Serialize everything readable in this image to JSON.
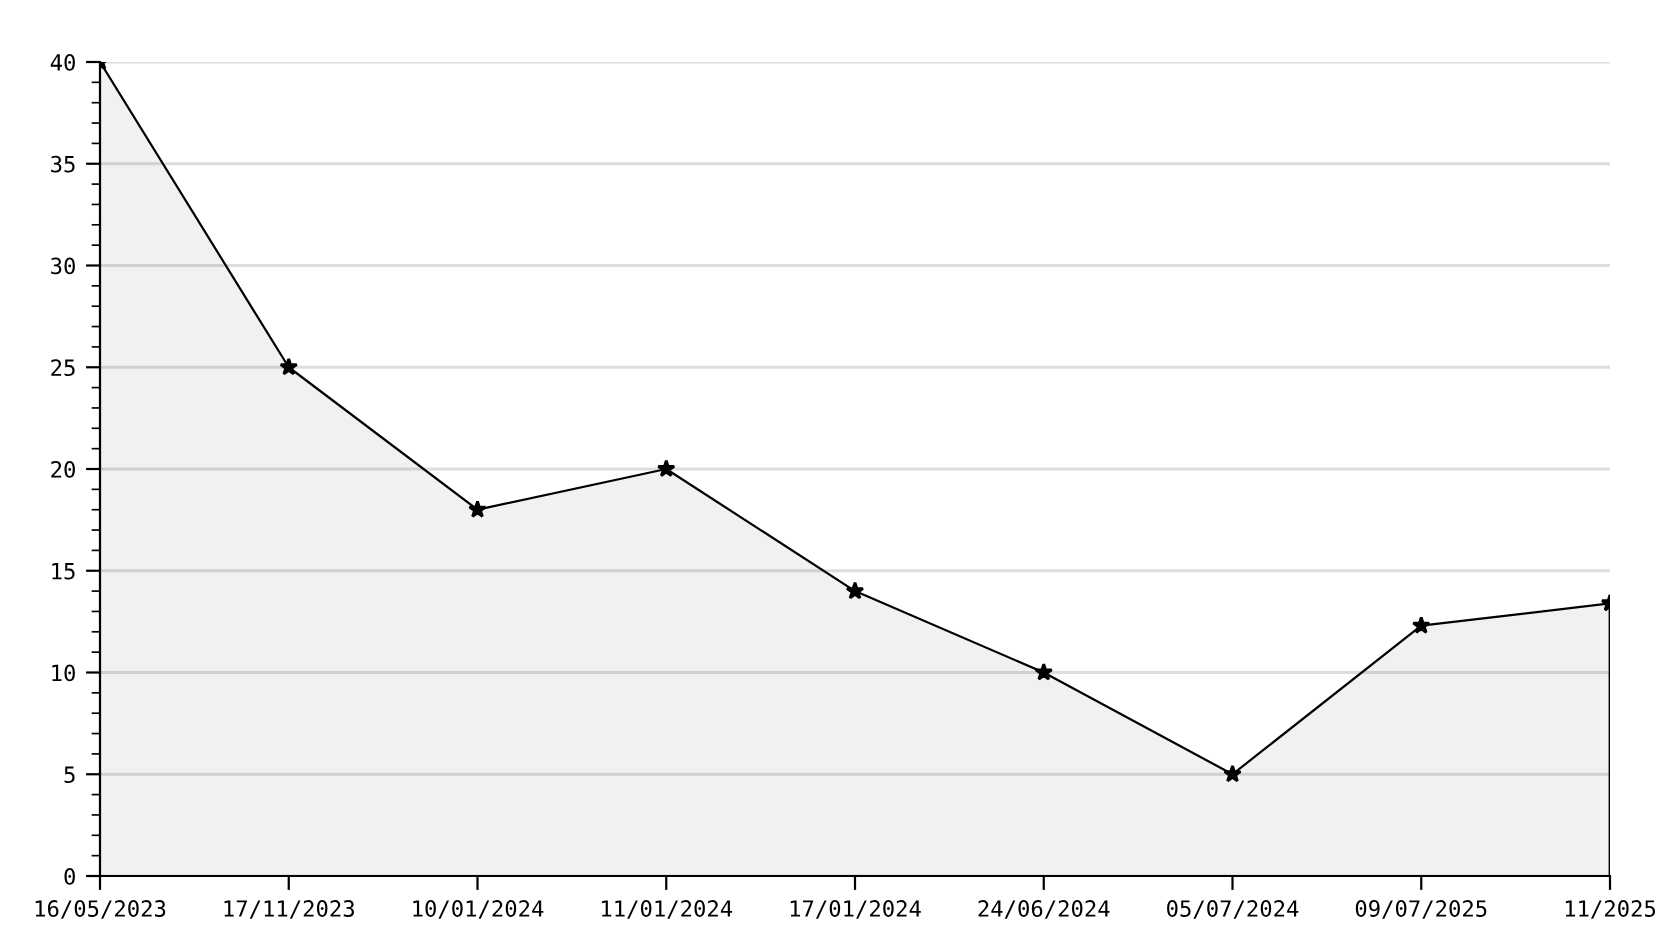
{
  "chart_data": {
    "type": "area",
    "categories": [
      "16/05/2023",
      "17/11/2023",
      "10/01/2024",
      "11/01/2024",
      "17/01/2024",
      "24/06/2024",
      "05/07/2024",
      "09/07/2025",
      "11/2025"
    ],
    "series": [
      {
        "color": "#000000",
        "values": [
          40,
          25,
          18,
          20,
          14,
          10,
          5,
          12.3,
          13.4
        ]
      }
    ],
    "ylim": [
      0,
      40
    ],
    "yticks": [
      0,
      5,
      10,
      15,
      20,
      25,
      30,
      35,
      40
    ],
    "grid": "y",
    "marker": "star",
    "line_style": "solid",
    "legend": false
  }
}
